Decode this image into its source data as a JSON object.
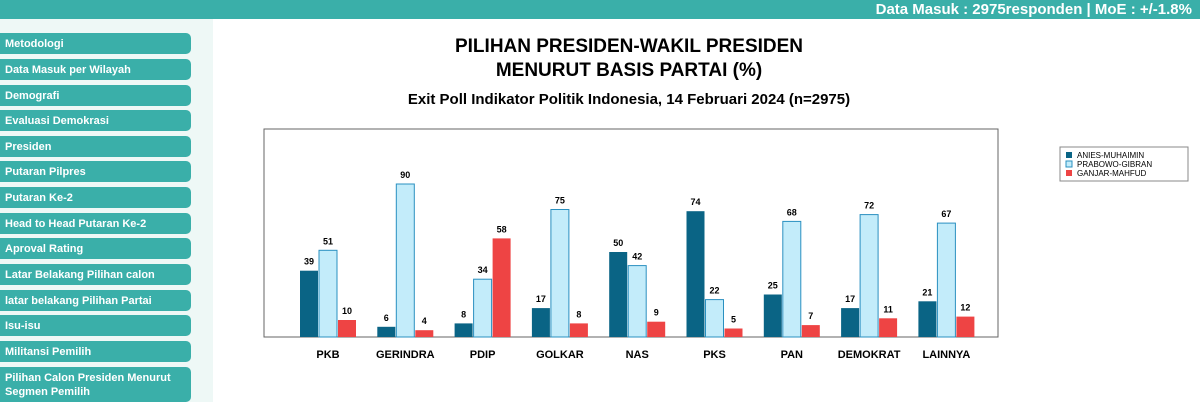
{
  "header": {
    "status_text": "Data Masuk : 2975responden | MoE : +/-1.8%"
  },
  "sidebar": {
    "items": [
      "Metodologi",
      "Data Masuk per Wilayah",
      "Demografi",
      "Evaluasi Demokrasi",
      "Presiden",
      "Putaran Pilpres",
      "Putaran Ke-2",
      "Head to Head Putaran Ke-2",
      "Aproval Rating",
      "Latar Belakang Pilihan calon",
      "latar belakang Pilihan Partai",
      "Isu-isu",
      "Militansi Pemilih",
      "Pilihan Calon Presiden Menurut Segmen Pemilih"
    ]
  },
  "chart_data": {
    "type": "bar",
    "title_line1": "PILIHAN PRESIDEN-WAKIL PRESIDEN",
    "title_line2": "MENURUT BASIS PARTAI (%)",
    "subtitle": "Exit Poll Indikator Politik Indonesia, 14 Februari 2024 (n=2975)",
    "categories": [
      "PKB",
      "GERINDRA",
      "PDIP",
      "GOLKAR",
      "NAS",
      "PKS",
      "PAN",
      "DEMOKRAT",
      "LAINNYA"
    ],
    "series": [
      {
        "name": "ANIES-MUHAIMIN",
        "color": "#0a6485",
        "values": [
          39,
          6,
          8,
          17,
          50,
          74,
          25,
          17,
          21
        ]
      },
      {
        "name": "PRABOWO-GIBRAN",
        "color": "#c3ecfa",
        "values": [
          51,
          90,
          34,
          75,
          42,
          22,
          68,
          72,
          67
        ]
      },
      {
        "name": "GANJAR-MAHFUD",
        "color": "#ee4444",
        "values": [
          10,
          4,
          58,
          8,
          9,
          5,
          7,
          11,
          12
        ]
      }
    ],
    "ylim": [
      0,
      100
    ],
    "grid": false,
    "legend_position": "right"
  }
}
